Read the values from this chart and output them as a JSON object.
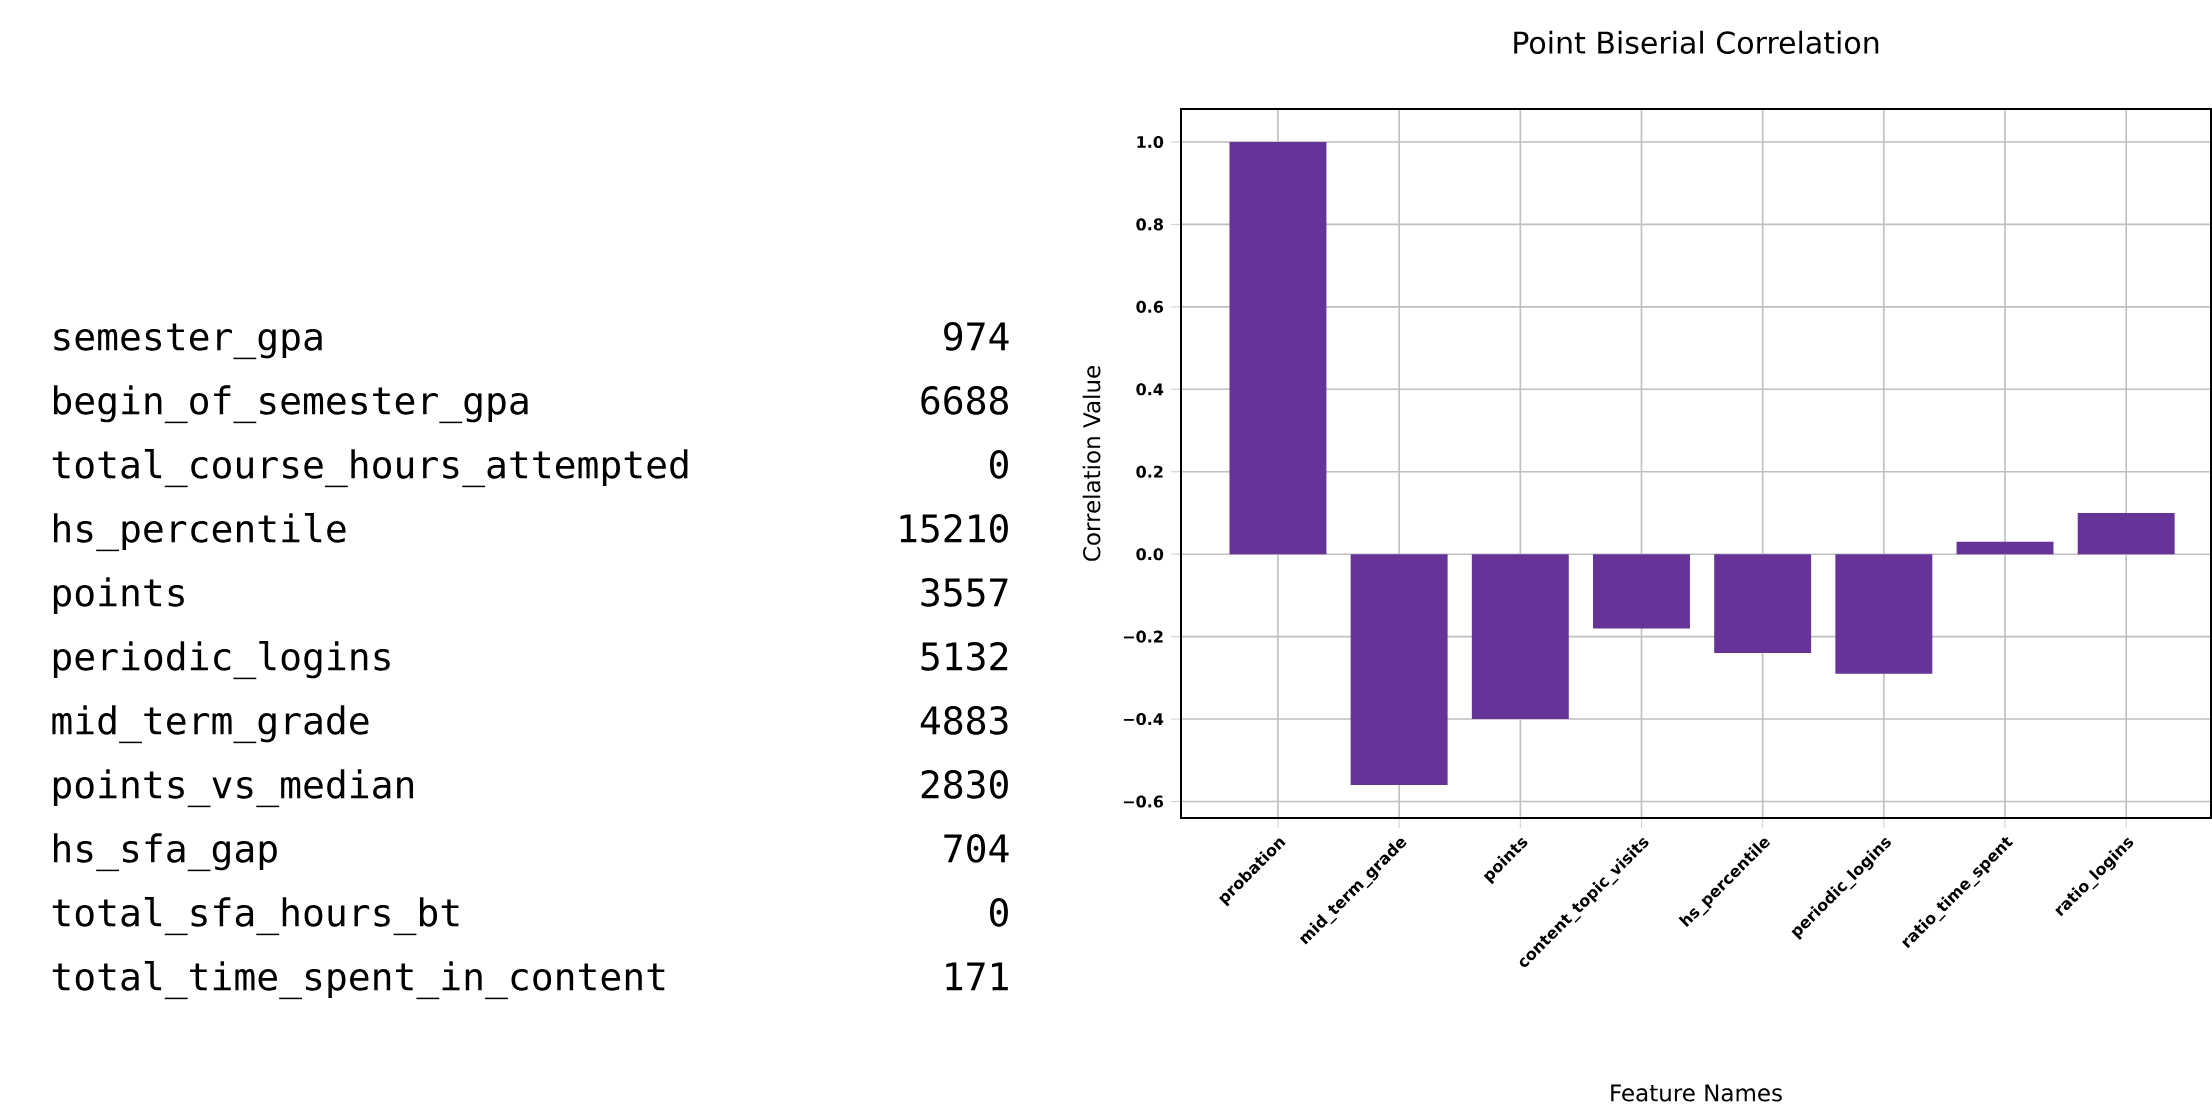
{
  "chart_data": [
    {
      "type": "other",
      "categories": [
        "semester_gpa",
        "begin_of_semester_gpa",
        "total_course_hours_attempted",
        "hs_percentile",
        "points",
        "periodic_logins",
        "mid_term_grade",
        "points_vs_median",
        "hs_sfa_gap",
        "total_sfa_hours_bt",
        "total_time_spent_in_content"
      ],
      "values": [
        974,
        6688,
        0,
        15210,
        3557,
        5132,
        4883,
        2830,
        704,
        0,
        171
      ],
      "data_labels": true
    },
    {
      "type": "bar",
      "title": "Point Biserial Correlation",
      "xlabel": "Feature Names",
      "ylabel": "Correlation Value",
      "categories": [
        "probation",
        "mid_term_grade",
        "points",
        "content_topic_visits",
        "hs_percentile",
        "periodic_logins",
        "ratio_time_spent",
        "ratio_logins"
      ],
      "values": [
        1.0,
        -0.56,
        -0.4,
        -0.18,
        -0.24,
        -0.29,
        0.03,
        0.1
      ],
      "color": "#663399",
      "ylim": [
        -0.64,
        1.08
      ],
      "yticks": [
        {
          "value": -0.6,
          "label": "−0.6"
        },
        {
          "value": -0.4,
          "label": "−0.4"
        },
        {
          "value": -0.2,
          "label": "−0.2"
        },
        {
          "value": 0.0,
          "label": "0.0"
        },
        {
          "value": 0.2,
          "label": "0.2"
        },
        {
          "value": 0.4,
          "label": "0.4"
        },
        {
          "value": 0.6,
          "label": "0.6"
        },
        {
          "value": 0.8,
          "label": "0.8"
        },
        {
          "value": 1.0,
          "label": "1.0"
        }
      ],
      "grid": true
    }
  ]
}
